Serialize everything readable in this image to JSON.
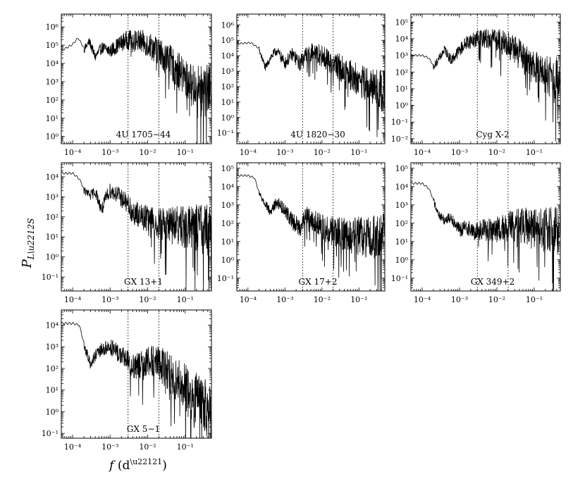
{
  "figure": {
    "xlabel": "f (d⁻¹)",
    "ylabel": "P_{L-S}"
  },
  "chart_data": [
    {
      "type": "line",
      "panel": 0,
      "label": "4U 1705−44",
      "xlim": [
        5e-05,
        0.5
      ],
      "ylim": [
        0.4,
        5000000
      ],
      "yticks": [
        0,
        1,
        2,
        3,
        4,
        5,
        6
      ],
      "vlines": [
        0.003,
        0.02
      ],
      "series": [
        {
          "x": [
            5e-05,
            0.0001,
            0.00014,
            0.0002,
            0.00028,
            0.0004,
            0.0006,
            0.001,
            0.0016,
            0.0025,
            0.004,
            0.007,
            0.012,
            0.02,
            0.04,
            0.08,
            0.15,
            0.3,
            0.5
          ],
          "y": [
            50000,
            110000,
            250000,
            70000,
            200000,
            30000,
            100000,
            70000,
            150000,
            300000,
            350000,
            300000,
            200000,
            100000,
            30000,
            7000,
            2000,
            1500,
            1500
          ]
        }
      ]
    },
    {
      "type": "line",
      "panel": 1,
      "label": "4U 1820−30",
      "xlim": [
        5e-05,
        0.5
      ],
      "ylim": [
        0.02,
        5000000
      ],
      "yticks": [
        -1,
        0,
        1,
        2,
        3,
        4,
        5,
        6
      ],
      "vlines": [
        0.003,
        0.02
      ],
      "series": [
        {
          "x": [
            5e-05,
            0.00012,
            0.0002,
            0.0003,
            0.0004,
            0.0006,
            0.001,
            0.0016,
            0.0025,
            0.004,
            0.007,
            0.012,
            0.02,
            0.04,
            0.08,
            0.15,
            0.3,
            0.5
          ],
          "y": [
            60000,
            70000,
            30000,
            2000,
            10000,
            30000,
            5000,
            20000,
            5000,
            30000,
            30000,
            15000,
            8000,
            3000,
            1000,
            500,
            300,
            200
          ]
        }
      ]
    },
    {
      "type": "line",
      "panel": 2,
      "label": "Cyg X-2",
      "xlim": [
        5e-05,
        0.5
      ],
      "ylim": [
        0.005,
        300000
      ],
      "yticks": [
        -2,
        -1,
        0,
        1,
        2,
        3,
        4,
        5
      ],
      "vlines": [
        0.003,
        0.02
      ],
      "series": [
        {
          "x": [
            5e-05,
            0.0001,
            0.00015,
            0.0002,
            0.0003,
            0.0004,
            0.0006,
            0.001,
            0.0016,
            0.0025,
            0.004,
            0.007,
            0.012,
            0.02,
            0.04,
            0.08,
            0.15,
            0.3,
            0.5
          ],
          "y": [
            1000,
            1000,
            700,
            250,
            1000,
            3000,
            700,
            3000,
            10000,
            15000,
            20000,
            20000,
            15000,
            10000,
            3000,
            700,
            300,
            200,
            150
          ]
        }
      ]
    },
    {
      "type": "line",
      "panel": 3,
      "label": "GX 13+1",
      "xlim": [
        5e-05,
        0.5
      ],
      "ylim": [
        0.02,
        50000
      ],
      "yticks": [
        -1,
        0,
        1,
        2,
        3,
        4
      ],
      "vlines": [
        0.003,
        0.02
      ],
      "series": [
        {
          "x": [
            5e-05,
            0.0001,
            0.00015,
            0.0002,
            0.0003,
            0.0004,
            0.0006,
            0.0008,
            0.001,
            0.0016,
            0.0025,
            0.004,
            0.007,
            0.012,
            0.02,
            0.04,
            0.08,
            0.15,
            0.3,
            0.5
          ],
          "y": [
            15000,
            15000,
            8000,
            2500,
            1500,
            2500,
            300,
            1500,
            3000,
            2000,
            1000,
            300,
            200,
            150,
            100,
            100,
            100,
            100,
            100,
            100
          ]
        }
      ]
    },
    {
      "type": "line",
      "panel": 4,
      "label": "GX 17+2",
      "xlim": [
        5e-05,
        0.5
      ],
      "ylim": [
        0.02,
        200000
      ],
      "yticks": [
        -1,
        0,
        1,
        2,
        3,
        4,
        5
      ],
      "vlines": [
        0.003,
        0.02
      ],
      "series": [
        {
          "x": [
            5e-05,
            0.0001,
            0.00015,
            0.0002,
            0.0003,
            0.0004,
            0.0006,
            0.001,
            0.0016,
            0.0025,
            0.004,
            0.007,
            0.012,
            0.02,
            0.04,
            0.08,
            0.15,
            0.3,
            0.5
          ],
          "y": [
            40000,
            40000,
            30000,
            5000,
            1500,
            500,
            2000,
            800,
            200,
            100,
            500,
            200,
            100,
            80,
            60,
            60,
            60,
            60,
            60
          ]
        }
      ]
    },
    {
      "type": "line",
      "panel": 5,
      "label": "GX 349+2",
      "xlim": [
        5e-05,
        0.5
      ],
      "ylim": [
        0.02,
        200000
      ],
      "yticks": [
        -1,
        0,
        1,
        2,
        3,
        4,
        5
      ],
      "vlines": [
        0.003,
        0.02
      ],
      "series": [
        {
          "x": [
            5e-05,
            0.0001,
            0.00015,
            0.0002,
            0.0003,
            0.0004,
            0.0006,
            0.001,
            0.0016,
            0.0025,
            0.004,
            0.007,
            0.012,
            0.02,
            0.04,
            0.08,
            0.15,
            0.3,
            0.5
          ],
          "y": [
            15000,
            15000,
            8000,
            2000,
            300,
            200,
            300,
            60,
            100,
            50,
            80,
            80,
            100,
            150,
            200,
            200,
            150,
            150,
            150
          ]
        }
      ]
    },
    {
      "type": "line",
      "panel": 6,
      "label": "GX 5−1",
      "xlim": [
        5e-05,
        0.5
      ],
      "ylim": [
        0.06,
        50000
      ],
      "yticks": [
        -1,
        0,
        1,
        2,
        3,
        4
      ],
      "vlines": [
        0.003,
        0.02
      ],
      "series": [
        {
          "x": [
            5e-05,
            0.0001,
            0.00015,
            0.0002,
            0.0003,
            0.0004,
            0.0006,
            0.001,
            0.0016,
            0.0025,
            0.004,
            0.007,
            0.012,
            0.02,
            0.04,
            0.08,
            0.15,
            0.3,
            0.5
          ],
          "y": [
            12000,
            12000,
            10000,
            1500,
            200,
            500,
            1000,
            1500,
            800,
            500,
            200,
            300,
            500,
            400,
            150,
            60,
            20,
            8,
            3
          ]
        }
      ]
    }
  ]
}
